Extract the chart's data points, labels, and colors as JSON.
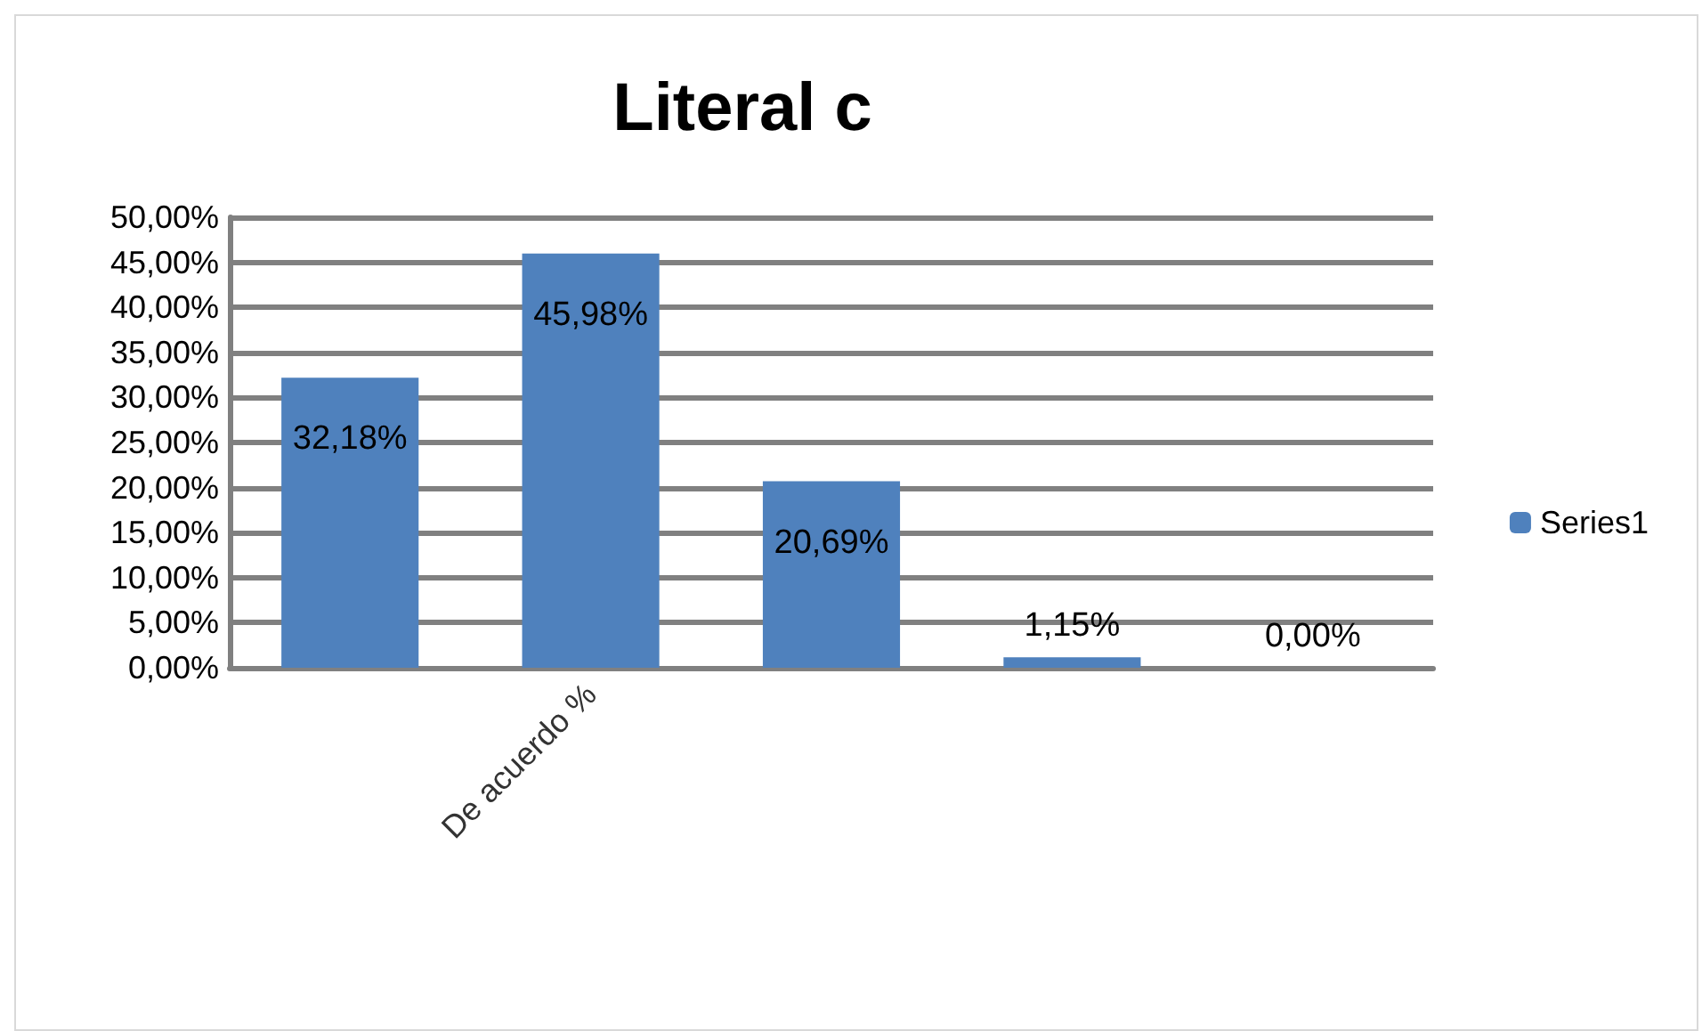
{
  "chart_data": {
    "type": "bar",
    "title": "Literal c",
    "categories": [
      null,
      "De acuerdo %",
      null,
      null,
      null
    ],
    "series": [
      {
        "name": "Series1",
        "color": "#4f81bd",
        "values": [
          32.18,
          45.98,
          20.69,
          1.15,
          0
        ],
        "value_labels": [
          "32,18%",
          "45,98%",
          "20,69%",
          "1,15%",
          "0,00%"
        ]
      }
    ],
    "ylim": [
      0,
      50
    ],
    "yticks": [
      {
        "value": 0,
        "label": "0,00%"
      },
      {
        "value": 5,
        "label": "5,00%"
      },
      {
        "value": 10,
        "label": "10,00%"
      },
      {
        "value": 15,
        "label": "15,00%"
      },
      {
        "value": 20,
        "label": "20,00%"
      },
      {
        "value": 25,
        "label": "25,00%"
      },
      {
        "value": 30,
        "label": "30,00%"
      },
      {
        "value": 35,
        "label": "35,00%"
      },
      {
        "value": 40,
        "label": "40,00%"
      },
      {
        "value": 45,
        "label": "45,00%"
      },
      {
        "value": 50,
        "label": "50,00%"
      }
    ],
    "grid": "y",
    "legend": "right"
  }
}
